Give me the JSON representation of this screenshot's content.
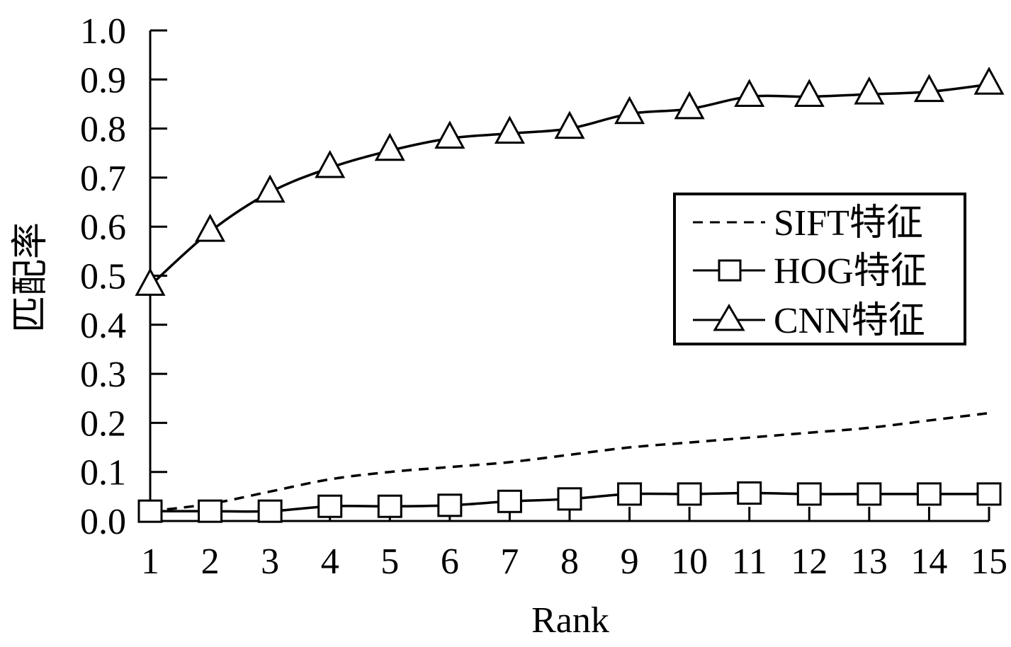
{
  "chart_data": {
    "type": "line",
    "title": "",
    "xlabel": "Rank",
    "ylabel": "匹配率",
    "x": [
      1,
      2,
      3,
      4,
      5,
      6,
      7,
      8,
      9,
      10,
      11,
      12,
      13,
      14,
      15
    ],
    "xlim": [
      1,
      15
    ],
    "ylim": [
      0.0,
      1.0
    ],
    "y_ticks": [
      "0.0",
      "0.1",
      "0.2",
      "0.3",
      "0.4",
      "0.5",
      "0.6",
      "0.7",
      "0.8",
      "0.9",
      "1.0"
    ],
    "x_ticks": [
      "1",
      "2",
      "3",
      "4",
      "5",
      "6",
      "7",
      "8",
      "9",
      "10",
      "11",
      "12",
      "13",
      "14",
      "15"
    ],
    "grid": false,
    "legend_position": "center-right",
    "series": [
      {
        "name": "SIFT特征",
        "style": "dashed",
        "marker": "none",
        "values": [
          0.02,
          0.035,
          0.06,
          0.085,
          0.1,
          0.11,
          0.12,
          0.135,
          0.15,
          0.16,
          0.17,
          0.18,
          0.19,
          0.205,
          0.22
        ]
      },
      {
        "name": "HOG特征",
        "style": "solid",
        "marker": "square",
        "values": [
          0.02,
          0.02,
          0.02,
          0.03,
          0.03,
          0.032,
          0.04,
          0.045,
          0.055,
          0.055,
          0.057,
          0.055,
          0.055,
          0.055,
          0.055
        ]
      },
      {
        "name": "CNN特征",
        "style": "solid",
        "marker": "triangle",
        "values": [
          0.48,
          0.59,
          0.67,
          0.72,
          0.755,
          0.78,
          0.79,
          0.8,
          0.83,
          0.84,
          0.865,
          0.865,
          0.87,
          0.875,
          0.89
        ]
      }
    ],
    "colors": {
      "line": "#000000",
      "background": "#ffffff"
    }
  }
}
